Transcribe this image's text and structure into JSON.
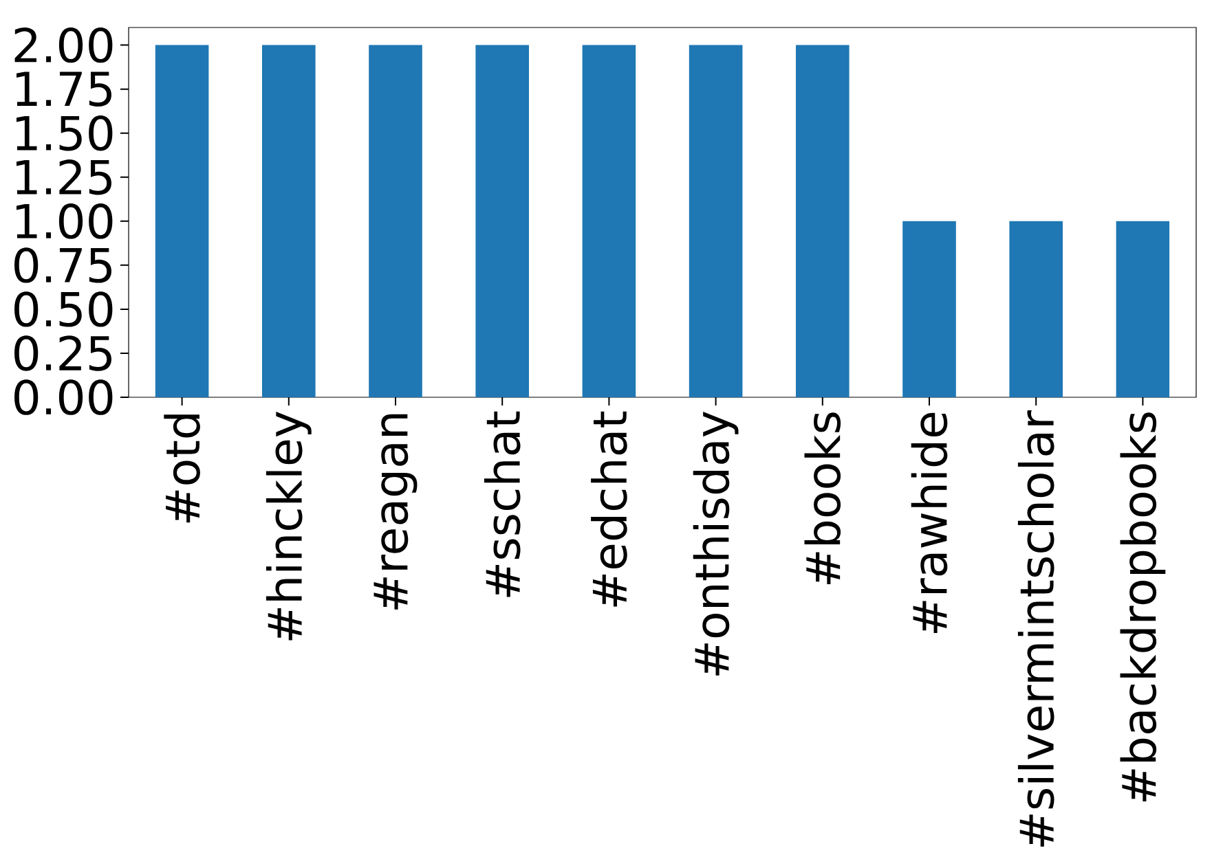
{
  "chart_data": {
    "type": "bar",
    "categories": [
      "#otd",
      "#hinckley",
      "#reagan",
      "#sschat",
      "#edchat",
      "#onthisday",
      "#books",
      "#rawhide",
      "#silvermintscholar",
      "#backdropbooks"
    ],
    "values": [
      2,
      2,
      2,
      2,
      2,
      2,
      2,
      1,
      1,
      1
    ],
    "color": "#1f77b4",
    "ylim": [
      0,
      2.1
    ],
    "yticks": [
      {
        "value": 0,
        "label": "0.00"
      },
      {
        "value": 0.25,
        "label": "0.25"
      },
      {
        "value": 0.5,
        "label": "0.50"
      },
      {
        "value": 0.75,
        "label": "0.75"
      },
      {
        "value": 1,
        "label": "1.00"
      },
      {
        "value": 1.25,
        "label": "1.25"
      },
      {
        "value": 1.5,
        "label": "1.50"
      },
      {
        "value": 1.75,
        "label": "1.75"
      },
      {
        "value": 2,
        "label": "2.00"
      }
    ]
  }
}
